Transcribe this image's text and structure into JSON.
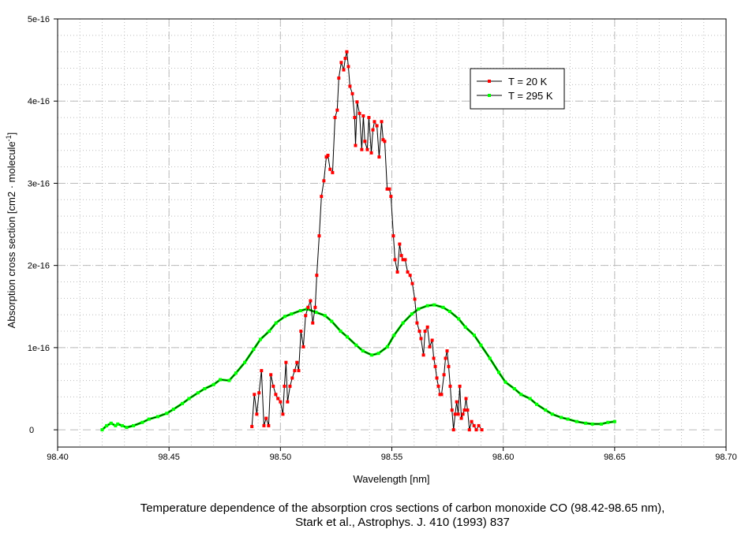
{
  "chart_data": {
    "type": "line",
    "xlabel": "Wavelength [nm]",
    "ylabel": "Absorption cross section [cm2 · molecule",
    "ylabel_sup": "-1",
    "ylabel_end": "]",
    "xlim": [
      98.4,
      98.7
    ],
    "ylim": [
      -2.1e-17,
      5e-16
    ],
    "x_ticks": [
      98.4,
      98.45,
      98.5,
      98.55,
      98.6,
      98.65,
      98.7
    ],
    "x_tick_labels": [
      "98.40",
      "98.45",
      "98.50",
      "98.55",
      "98.60",
      "98.65",
      "98.70"
    ],
    "y_ticks": [
      0,
      1e-16,
      2e-16,
      3e-16,
      4e-16,
      5e-16
    ],
    "y_tick_labels": [
      "0",
      "1e-16",
      "2e-16",
      "3e-16",
      "4e-16",
      "5e-16"
    ],
    "grid": true,
    "legend_position": "top-right",
    "y_unit_multiplier": 1e-16,
    "caption": [
      "Temperature dependence of the absorption cros sections of carbon monoxide CO (98.42-98.65 nm),",
      "Stark et al., Astrophys. J. 410 (1993) 837"
    ],
    "series": [
      {
        "name": "T = 20 K",
        "marker_color": "#ff0000",
        "line_color": "#000000",
        "x": [
          98.4872,
          98.4883,
          98.4894,
          98.4904,
          98.4915,
          98.4926,
          98.4936,
          98.4947,
          98.4957,
          98.4968,
          98.4979,
          98.4989,
          98.5,
          98.5011,
          98.5018,
          98.5025,
          98.5032,
          98.5043,
          98.5053,
          98.5064,
          98.5074,
          98.5082,
          98.5092,
          98.5103,
          98.5113,
          98.5124,
          98.5135,
          98.5145,
          98.5156,
          98.5163,
          98.5174,
          98.5184,
          98.5195,
          98.5206,
          98.5213,
          98.5223,
          98.5234,
          98.5245,
          98.5255,
          98.5262,
          98.5273,
          98.5284,
          98.5291,
          98.5298,
          98.5305,
          98.5312,
          98.5323,
          98.5333,
          98.5337,
          98.5344,
          98.5355,
          98.5365,
          98.5372,
          98.5379,
          98.539,
          98.5397,
          98.5408,
          98.5415,
          98.5422,
          98.5433,
          98.5443,
          98.5454,
          98.5461,
          98.5468,
          98.5479,
          98.5489,
          98.5496,
          98.5507,
          98.5514,
          98.5525,
          98.5535,
          98.5543,
          98.555,
          98.556,
          98.5571,
          98.5582,
          98.5592,
          98.5603,
          98.5613,
          98.5624,
          98.5631,
          98.5642,
          98.5649,
          98.566,
          98.567,
          98.5681,
          98.5688,
          98.5695,
          98.5702,
          98.5709,
          98.5716,
          98.5723,
          98.5734,
          98.5741,
          98.5748,
          98.5755,
          98.5762,
          98.577,
          98.5777,
          98.5784,
          98.5791,
          98.5798,
          98.5805,
          98.5812,
          98.5819,
          98.5826,
          98.5833,
          98.584,
          98.5848,
          98.5858,
          98.5869,
          98.5879,
          98.589,
          98.5904
        ],
        "y": [
          0.04,
          0.43,
          0.19,
          0.45,
          0.72,
          0.05,
          0.14,
          0.05,
          0.67,
          0.53,
          0.43,
          0.38,
          0.34,
          0.19,
          0.53,
          0.82,
          0.34,
          0.53,
          0.63,
          0.72,
          0.82,
          0.72,
          1.2,
          1.01,
          1.39,
          1.49,
          1.57,
          1.3,
          1.49,
          1.88,
          2.36,
          2.84,
          3.03,
          3.32,
          3.34,
          3.17,
          3.13,
          3.8,
          3.89,
          4.28,
          4.47,
          4.38,
          4.52,
          4.6,
          4.42,
          4.18,
          4.09,
          3.8,
          3.46,
          3.99,
          3.85,
          3.41,
          3.82,
          3.51,
          3.41,
          3.8,
          3.37,
          3.65,
          3.75,
          3.7,
          3.32,
          3.75,
          3.53,
          3.51,
          2.93,
          2.93,
          2.84,
          2.36,
          2.07,
          1.92,
          2.26,
          2.12,
          2.07,
          2.07,
          1.92,
          1.88,
          1.78,
          1.59,
          1.3,
          1.2,
          1.11,
          0.91,
          1.2,
          1.25,
          1.01,
          1.09,
          0.87,
          0.77,
          0.63,
          0.53,
          0.43,
          0.43,
          0.67,
          0.87,
          0.96,
          0.77,
          0.53,
          0.24,
          0.0,
          0.19,
          0.34,
          0.19,
          0.53,
          0.14,
          0.19,
          0.24,
          0.38,
          0.24,
          0.0,
          0.1,
          0.05,
          0.0,
          0.05,
          0.0
        ]
      },
      {
        "name": "T = 295 K",
        "marker_color": "#00ff00",
        "line_color": "#000000",
        "x": [
          98.42,
          98.422,
          98.424,
          98.426,
          98.427,
          98.429,
          98.431,
          98.434,
          98.438,
          98.441,
          98.445,
          98.449,
          98.452,
          98.456,
          98.459,
          98.463,
          98.466,
          98.47,
          98.473,
          98.477,
          98.48,
          98.484,
          98.488,
          98.491,
          98.495,
          98.498,
          98.502,
          98.505,
          98.509,
          98.512,
          98.516,
          98.52,
          98.523,
          98.527,
          98.53,
          98.534,
          98.537,
          98.541,
          98.544,
          98.548,
          98.551,
          98.555,
          98.559,
          98.562,
          98.566,
          98.569,
          98.573,
          98.576,
          98.58,
          98.583,
          98.587,
          98.59,
          98.594,
          98.598,
          98.601,
          98.605,
          98.608,
          98.612,
          98.615,
          98.619,
          98.622,
          98.626,
          98.629,
          98.633,
          98.637,
          98.64,
          98.644,
          98.647,
          98.65
        ],
        "y": [
          0.0,
          0.05,
          0.08,
          0.05,
          0.07,
          0.05,
          0.03,
          0.05,
          0.09,
          0.13,
          0.16,
          0.2,
          0.25,
          0.32,
          0.38,
          0.45,
          0.5,
          0.55,
          0.61,
          0.6,
          0.69,
          0.82,
          0.98,
          1.1,
          1.2,
          1.3,
          1.38,
          1.41,
          1.45,
          1.47,
          1.43,
          1.39,
          1.32,
          1.2,
          1.13,
          1.03,
          0.96,
          0.91,
          0.93,
          1.01,
          1.15,
          1.3,
          1.41,
          1.47,
          1.51,
          1.52,
          1.49,
          1.44,
          1.35,
          1.25,
          1.15,
          1.03,
          0.87,
          0.7,
          0.58,
          0.5,
          0.43,
          0.38,
          0.31,
          0.24,
          0.19,
          0.15,
          0.13,
          0.1,
          0.08,
          0.07,
          0.07,
          0.09,
          0.1
        ]
      }
    ]
  }
}
